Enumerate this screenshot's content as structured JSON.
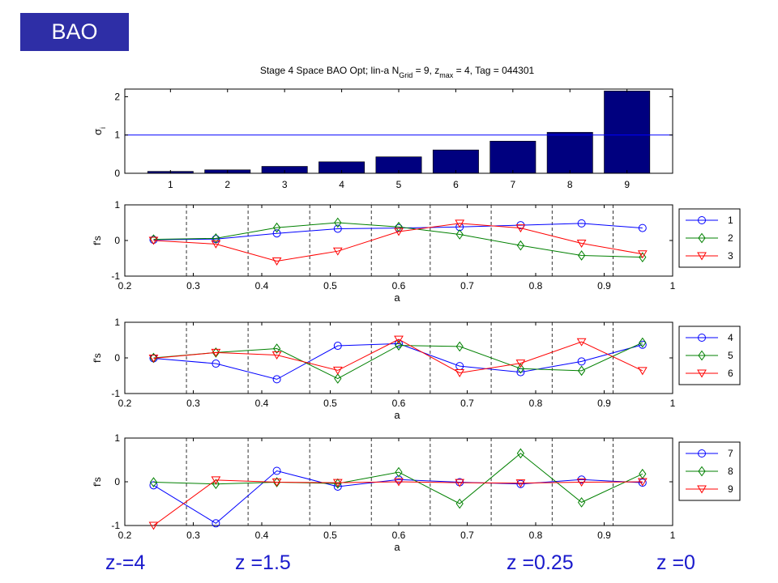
{
  "slide": {
    "badge": "BAO",
    "z_labels": [
      "z-=4",
      "z =1.5",
      "z =0.25",
      "z =0"
    ]
  },
  "colors": {
    "badge_bg": "#2e2ea6",
    "z_label_text": "#1a1acc",
    "bar": "#00007f",
    "series_1": "#0000ff",
    "series_2": "#008000",
    "series_3": "#ff0000"
  },
  "chart_data": [
    {
      "type": "bar",
      "title": "Stage 4 Space BAO Opt; lin-a N_Grid = 9, z_max = 4, Tag = 044301",
      "ylabel": "σ_i",
      "xlabel": "",
      "categories": [
        "1",
        "2",
        "3",
        "4",
        "5",
        "6",
        "7",
        "8",
        "9"
      ],
      "values": [
        0.05,
        0.09,
        0.18,
        0.3,
        0.43,
        0.61,
        0.84,
        1.07,
        2.15
      ],
      "xlim": [
        0.2,
        9.8
      ],
      "ylim": [
        0,
        2.2
      ],
      "yticks": [
        0,
        1,
        2
      ],
      "reference_line": 1,
      "grid": false
    },
    {
      "type": "line",
      "xlabel": "a",
      "ylabel": "f's",
      "xlim": [
        0.2,
        1
      ],
      "ylim": [
        -1,
        1
      ],
      "xticks": [
        0.2,
        0.3,
        0.4,
        0.5,
        0.6,
        0.7,
        0.8,
        0.9,
        1
      ],
      "yticks": [
        -1,
        0,
        1
      ],
      "vlines": [
        0.29,
        0.38,
        0.47,
        0.56,
        0.646,
        0.735,
        0.824,
        0.913
      ],
      "legend_position": "outside-right",
      "x": [
        0.242,
        0.333,
        0.422,
        0.511,
        0.6,
        0.689,
        0.778,
        0.867,
        0.956
      ],
      "series": [
        {
          "name": "1",
          "marker": "circle",
          "values": [
            0.02,
            0.04,
            0.2,
            0.33,
            0.35,
            0.38,
            0.43,
            0.48,
            0.35
          ]
        },
        {
          "name": "2",
          "marker": "diamond",
          "values": [
            0.03,
            0.06,
            0.36,
            0.5,
            0.38,
            0.17,
            -0.14,
            -0.42,
            -0.47
          ]
        },
        {
          "name": "3",
          "marker": "triangle-down",
          "values": [
            0.0,
            -0.1,
            -0.58,
            -0.3,
            0.25,
            0.48,
            0.35,
            -0.08,
            -0.38
          ]
        }
      ]
    },
    {
      "type": "line",
      "xlabel": "a",
      "ylabel": "f's",
      "xlim": [
        0.2,
        1
      ],
      "ylim": [
        -1,
        1
      ],
      "xticks": [
        0.2,
        0.3,
        0.4,
        0.5,
        0.6,
        0.7,
        0.8,
        0.9,
        1
      ],
      "yticks": [
        -1,
        0,
        1
      ],
      "vlines": [
        0.29,
        0.38,
        0.47,
        0.56,
        0.646,
        0.735,
        0.824,
        0.913
      ],
      "legend_position": "outside-right",
      "x": [
        0.242,
        0.333,
        0.422,
        0.511,
        0.6,
        0.689,
        0.778,
        0.867,
        0.956
      ],
      "series": [
        {
          "name": "4",
          "marker": "circle",
          "values": [
            -0.01,
            -0.16,
            -0.6,
            0.34,
            0.4,
            -0.23,
            -0.4,
            -0.1,
            0.37
          ]
        },
        {
          "name": "5",
          "marker": "diamond",
          "values": [
            0.0,
            0.15,
            0.26,
            -0.58,
            0.35,
            0.32,
            -0.3,
            -0.36,
            0.43
          ]
        },
        {
          "name": "6",
          "marker": "triangle-down",
          "values": [
            -0.01,
            0.15,
            0.08,
            -0.35,
            0.52,
            -0.42,
            -0.15,
            0.45,
            -0.36
          ]
        }
      ]
    },
    {
      "type": "line",
      "xlabel": "a",
      "ylabel": "f's",
      "xlim": [
        0.2,
        1
      ],
      "ylim": [
        -1,
        1
      ],
      "xticks": [
        0.2,
        0.3,
        0.4,
        0.5,
        0.6,
        0.7,
        0.8,
        0.9,
        1
      ],
      "yticks": [
        -1,
        0,
        1
      ],
      "vlines": [
        0.29,
        0.38,
        0.47,
        0.56,
        0.646,
        0.735,
        0.824,
        0.913
      ],
      "legend_position": "outside-right",
      "x": [
        0.242,
        0.333,
        0.422,
        0.511,
        0.6,
        0.689,
        0.778,
        0.867,
        0.956
      ],
      "series": [
        {
          "name": "7",
          "marker": "circle",
          "values": [
            -0.08,
            -0.95,
            0.25,
            -0.11,
            0.05,
            -0.01,
            -0.05,
            0.05,
            -0.02
          ]
        },
        {
          "name": "8",
          "marker": "diamond",
          "values": [
            -0.01,
            -0.05,
            -0.01,
            -0.04,
            0.22,
            -0.5,
            0.65,
            -0.47,
            0.18
          ]
        },
        {
          "name": "9",
          "marker": "triangle-down",
          "values": [
            -1.0,
            0.04,
            -0.01,
            -0.02,
            0.0,
            -0.02,
            -0.03,
            -0.01,
            0.0
          ]
        }
      ]
    }
  ]
}
